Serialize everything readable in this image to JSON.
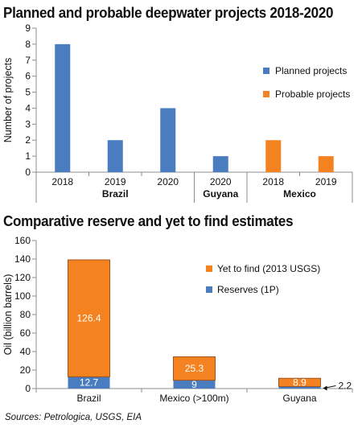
{
  "chart_data": [
    {
      "type": "bar",
      "title": "Planned and probable deepwater projects 2018-2020",
      "ylabel": "Number of projects",
      "ylim": [
        0,
        9
      ],
      "yticks": [
        0,
        1,
        2,
        3,
        4,
        5,
        6,
        7,
        8,
        9
      ],
      "categories": [
        "2018",
        "2019",
        "2020",
        "2020",
        "2018",
        "2019"
      ],
      "groups": [
        {
          "label": "Brazil",
          "span": [
            0,
            2
          ]
        },
        {
          "label": "Guyana",
          "span": [
            3,
            3
          ]
        },
        {
          "label": "Mexico",
          "span": [
            4,
            5
          ]
        }
      ],
      "series": [
        {
          "name": "Planned projects",
          "color": "#4a7dbf",
          "values": [
            8,
            2,
            4,
            1,
            null,
            null
          ]
        },
        {
          "name": "Probable projects",
          "color": "#f58220",
          "values": [
            null,
            null,
            null,
            null,
            2,
            1
          ]
        }
      ],
      "legend_position": "right",
      "grid": false
    },
    {
      "type": "bar",
      "stacked": true,
      "title": "Comparative reserve and yet to find estimates",
      "ylabel": "Oil (billion barrels)",
      "ylim": [
        0,
        160
      ],
      "yticks": [
        0,
        20,
        40,
        60,
        80,
        100,
        120,
        140,
        160
      ],
      "categories": [
        "Brazil",
        "Mexico (>100m)",
        "Guyana"
      ],
      "series": [
        {
          "name": "Reserves (1P)",
          "color": "#4a7dbf",
          "values": [
            12.7,
            9,
            2.2
          ],
          "labels": [
            "12.7",
            "9",
            "2.2"
          ]
        },
        {
          "name": "Yet to find (2013 USGS)",
          "color": "#f58220",
          "values": [
            126.4,
            25.3,
            8.9
          ],
          "labels": [
            "126.4",
            "25.3",
            "8.9"
          ]
        }
      ],
      "legend_position": "right",
      "legend_order": [
        "Yet to find (2013 USGS)",
        "Reserves (1P)"
      ],
      "grid": false
    }
  ],
  "source_text": "Sources: Petrologica, USGS, EIA"
}
